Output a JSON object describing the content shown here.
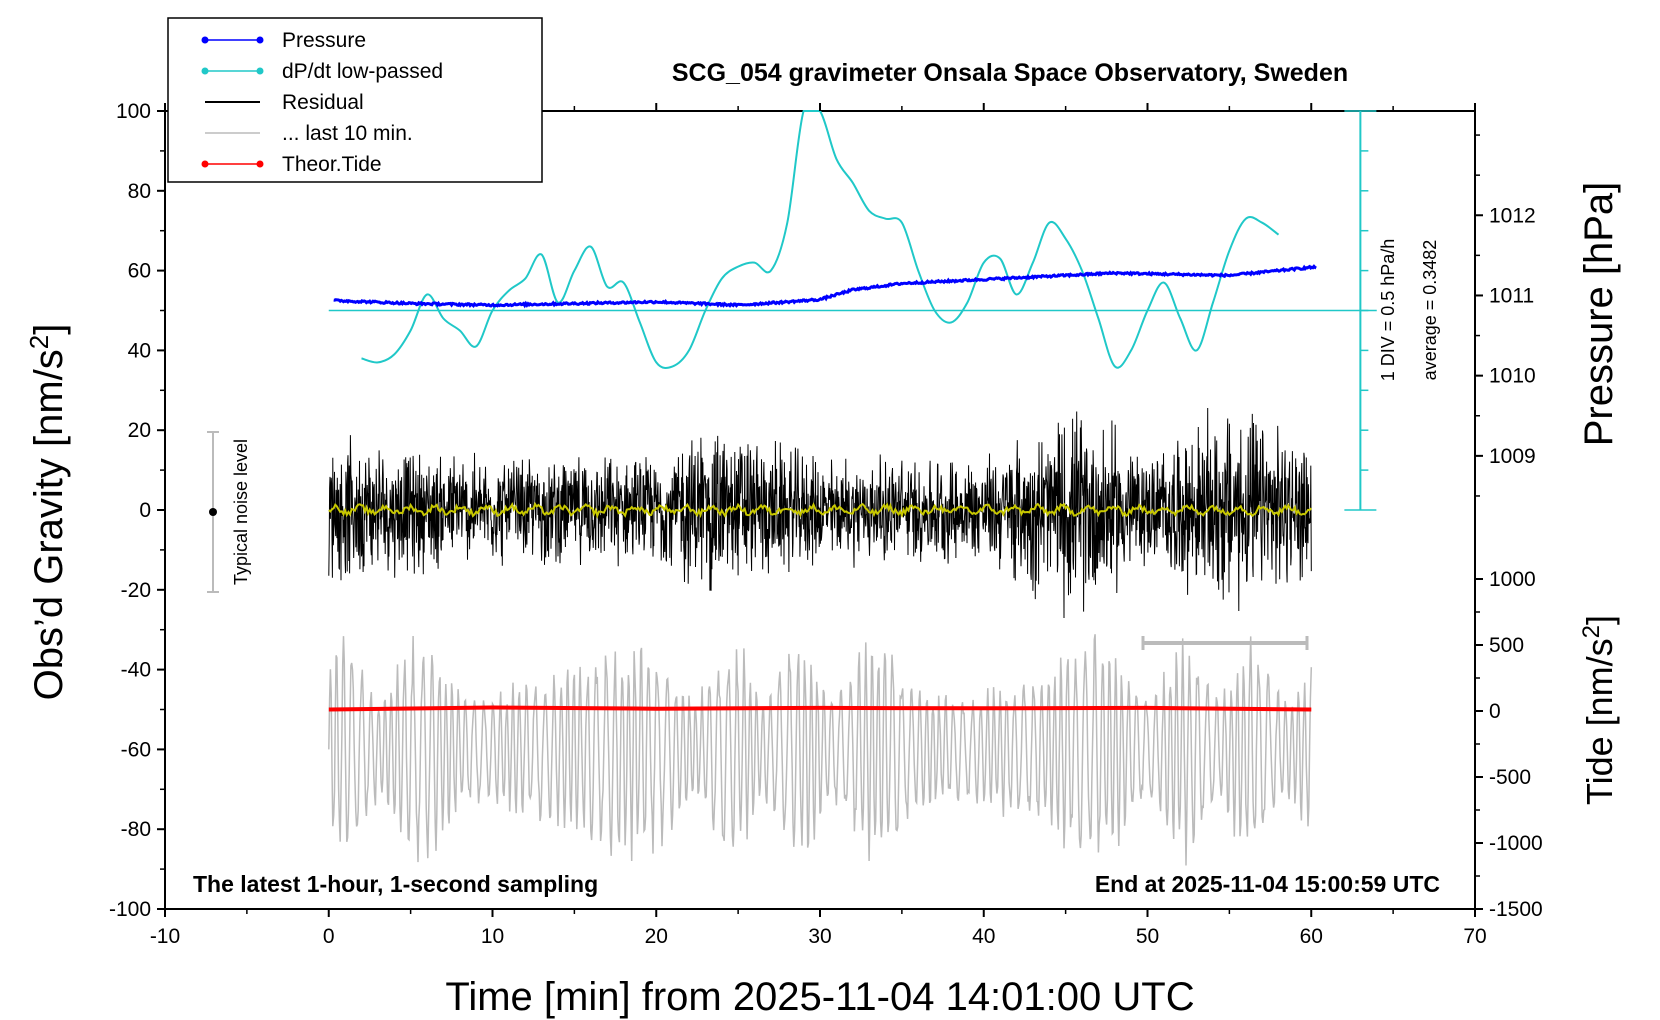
{
  "chart_data": {
    "type": "line",
    "title": "SCG_054 gravimeter Onsala Space Observatory, Sweden",
    "xlabel": "Time [min] from 2025-11-04 14:01:00 UTC",
    "ylabel_left_prefix": "Obs’d Gravity [nm/s",
    "ylabel_left_sup": "2",
    "ylabel_left_suffix": "]",
    "ylabel_right_top": "Pressure [hPa]",
    "ylabel_right_bottom_prefix": "Tide [nm/s",
    "ylabel_right_bottom_sup": "2",
    "ylabel_right_bottom_suffix": "]",
    "xlim": [
      -10,
      70
    ],
    "ylim_left": [
      -100,
      100
    ],
    "x_ticks": [
      "-10",
      "0",
      "10",
      "20",
      "30",
      "40",
      "50",
      "60",
      "70"
    ],
    "y_ticks_left": [
      "100",
      "80",
      "60",
      "40",
      "20",
      "0",
      "-20",
      "-40",
      "-60",
      "-80",
      "-100"
    ],
    "pressure_axis": {
      "range_hpa": [
        1008.0,
        1013.0
      ],
      "ticks": [
        "1012",
        "1011",
        "1010",
        "1009"
      ]
    },
    "tide_axis": {
      "range": [
        -1500,
        1000
      ],
      "ticks": [
        "1000",
        "500",
        "0",
        "-500",
        "-1000",
        "-1500"
      ]
    },
    "legend": [
      {
        "label": "Pressure",
        "color": "#0000ff",
        "marker": true
      },
      {
        "label": "dP/dt low-passed",
        "color": "#20c8c8",
        "marker": true
      },
      {
        "label": "Residual",
        "color": "#000000",
        "marker": false
      },
      {
        "label": "... last 10 min.",
        "color": "#bbbbbb",
        "marker": false
      },
      {
        "label": "Theor.Tide",
        "color": "#ff0000",
        "marker": true
      }
    ],
    "annotations": {
      "noise": "Typical noise level",
      "div": "1 DIV = 0.5 hPa/h",
      "average": "average = 0.3482",
      "bottom_left": "The latest 1-hour, 1-second sampling",
      "bottom_right": "End at 2025-11-04 15:00:59 UTC"
    },
    "series": [
      {
        "name": "Pressure",
        "color": "#0000ff",
        "unit": "hPa",
        "x": [
          0,
          5,
          10,
          15,
          20,
          25,
          28,
          30,
          32,
          35,
          40,
          45,
          48,
          50,
          55,
          60
        ],
        "values": [
          1010.94,
          1010.9,
          1010.88,
          1010.9,
          1010.92,
          1010.88,
          1010.92,
          1010.95,
          1011.07,
          1011.15,
          1011.2,
          1011.25,
          1011.28,
          1011.27,
          1011.25,
          1011.35
        ]
      },
      {
        "name": "dP/dt low-passed",
        "color": "#20c8c8",
        "unit": "nm/s2 (plot scale)",
        "x": [
          2,
          3,
          4,
          5,
          6,
          7,
          8,
          9,
          10,
          11,
          12,
          13,
          14,
          15,
          16,
          17,
          18,
          19,
          20,
          21,
          22,
          23,
          24,
          25,
          26,
          27,
          28,
          29,
          30,
          31,
          32,
          33,
          34,
          35,
          36,
          37,
          38,
          39,
          40,
          41,
          42,
          43,
          44,
          45,
          46,
          47,
          48,
          49,
          50,
          51,
          52,
          53,
          54,
          55,
          56,
          57,
          58
        ],
        "values": [
          38,
          37,
          39,
          45,
          54,
          48,
          45,
          41,
          50,
          55,
          58,
          64,
          52,
          60,
          66,
          56,
          57,
          47,
          37,
          36,
          40,
          50,
          58,
          61,
          62,
          60,
          72,
          100,
          100,
          88,
          82,
          75,
          73,
          72,
          60,
          50,
          47,
          52,
          62,
          63,
          54,
          62,
          72,
          68,
          60,
          48,
          36,
          40,
          50,
          57,
          48,
          40,
          52,
          65,
          73,
          72,
          69
        ]
      },
      {
        "name": "Residual",
        "color": "#000000",
        "unit": "nm/s2",
        "x_range": [
          0,
          60
        ],
        "envelope_x": [
          0,
          10,
          20,
          23,
          30,
          40,
          45,
          47,
          50,
          55,
          60
        ],
        "envelope_amp": [
          20,
          15,
          15,
          25,
          15,
          15,
          28,
          28,
          15,
          30,
          18
        ]
      },
      {
        "name": "Residual (smoothed)",
        "color": "#c8c800",
        "unit": "nm/s2",
        "x_range": [
          0,
          60
        ],
        "values_summary": [
          0,
          -1,
          1
        ]
      },
      {
        "name": "... last 10 min.",
        "color": "#bbbbbb",
        "unit": "nm/s2",
        "x_range": [
          0,
          60
        ],
        "center": -60,
        "amplitude": [
          15,
          30
        ]
      },
      {
        "name": "Theor.Tide",
        "color": "#ff0000",
        "unit": "nm/s2",
        "x": [
          0,
          10,
          20,
          30,
          40,
          50,
          60
        ],
        "values": [
          -50,
          -49.5,
          -49.8,
          -49.6,
          -49.7,
          -49.6,
          -50
        ]
      }
    ]
  }
}
